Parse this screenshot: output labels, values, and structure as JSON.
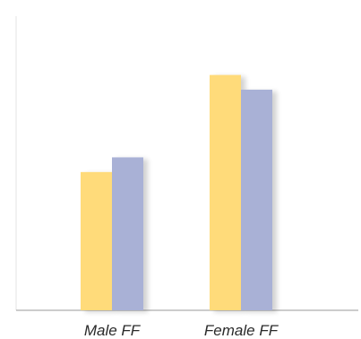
{
  "chart_data": {
    "type": "bar",
    "title": "",
    "xlabel": "",
    "ylabel": "",
    "categories": [
      "Male FF",
      "Female FF"
    ],
    "ylim": [
      0,
      100
    ],
    "grid": false,
    "series": [
      {
        "color": "#FFDB7A",
        "values": [
          47,
          80
        ]
      },
      {
        "color": "#A9B1D6",
        "values": [
          52,
          75
        ]
      }
    ]
  }
}
